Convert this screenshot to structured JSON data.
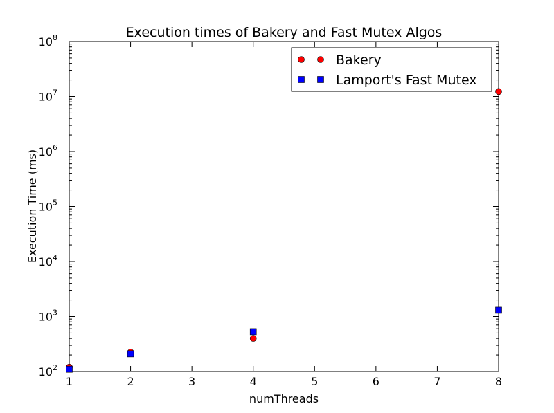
{
  "chart_data": {
    "type": "scatter",
    "title": "Execution times of Bakery and Fast Mutex Algos",
    "xlabel": "numThreads",
    "ylabel": "Execution Time (ms)",
    "xlim": [
      1,
      8
    ],
    "ylim": [
      100,
      100000000
    ],
    "yscale": "log",
    "grid": false,
    "legend_position": "top-right",
    "x_ticks": [
      "1",
      "2",
      "3",
      "4",
      "5",
      "6",
      "7",
      "8"
    ],
    "y_ticks": [
      {
        "base": "10",
        "exp": "2"
      },
      {
        "base": "10",
        "exp": "3"
      },
      {
        "base": "10",
        "exp": "4"
      },
      {
        "base": "10",
        "exp": "5"
      },
      {
        "base": "10",
        "exp": "6"
      },
      {
        "base": "10",
        "exp": "7"
      },
      {
        "base": "10",
        "exp": "8"
      }
    ],
    "series": [
      {
        "name": "Bakery",
        "marker": "circle",
        "color": "#ff0000",
        "x": [
          1,
          2,
          4,
          8
        ],
        "y": [
          120,
          225,
          400,
          12300000
        ]
      },
      {
        "name": "Lamport's Fast Mutex",
        "marker": "square",
        "color": "#0000ff",
        "x": [
          1,
          2,
          4,
          8
        ],
        "y": [
          110,
          210,
          530,
          1300
        ]
      }
    ]
  }
}
